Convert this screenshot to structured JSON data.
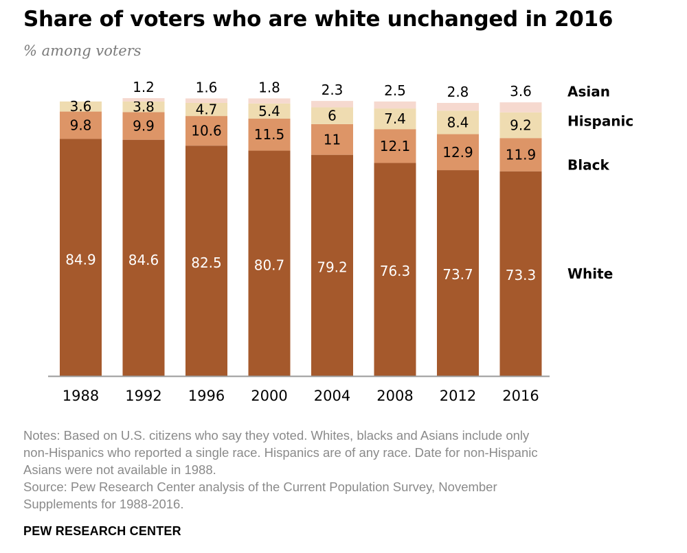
{
  "title": "Share of voters who are white unchanged in 2016",
  "subtitle": "% among voters",
  "notes": [
    "Notes: Based on U.S. citizens who say they voted. Whites, blacks and Asians include only",
    "non-Hispanics who reported a single race. Hispanics are of any race. Date for non-Hispanic",
    "Asians were not available in 1988.",
    "Source: Pew Research Center analysis of the Current Population Survey, November",
    "Supplements for 1988-2016."
  ],
  "footer": "PEW RESEARCH CENTER",
  "colors": {
    "White": "#a5592c",
    "Black": "#dd9567",
    "Hispanic": "#efdcb1",
    "Asian": "#f6d9cf",
    "axis": "#999999"
  },
  "chart_data": {
    "type": "bar",
    "stacked": true,
    "categories": [
      "1988",
      "1992",
      "1996",
      "2000",
      "2004",
      "2008",
      "2012",
      "2016"
    ],
    "series": [
      {
        "name": "White",
        "values": [
          84.9,
          84.6,
          82.5,
          80.7,
          79.2,
          76.3,
          73.7,
          73.3
        ]
      },
      {
        "name": "Black",
        "values": [
          9.8,
          9.9,
          10.6,
          11.5,
          11.0,
          12.1,
          12.9,
          11.9
        ]
      },
      {
        "name": "Hispanic",
        "values": [
          3.6,
          3.8,
          4.7,
          5.4,
          6.0,
          7.4,
          8.4,
          9.2
        ]
      },
      {
        "name": "Asian",
        "values": [
          null,
          1.2,
          1.6,
          1.8,
          2.3,
          2.5,
          2.8,
          3.6
        ]
      }
    ],
    "ylim": [
      0,
      100
    ],
    "grid": false,
    "legend": "right"
  }
}
